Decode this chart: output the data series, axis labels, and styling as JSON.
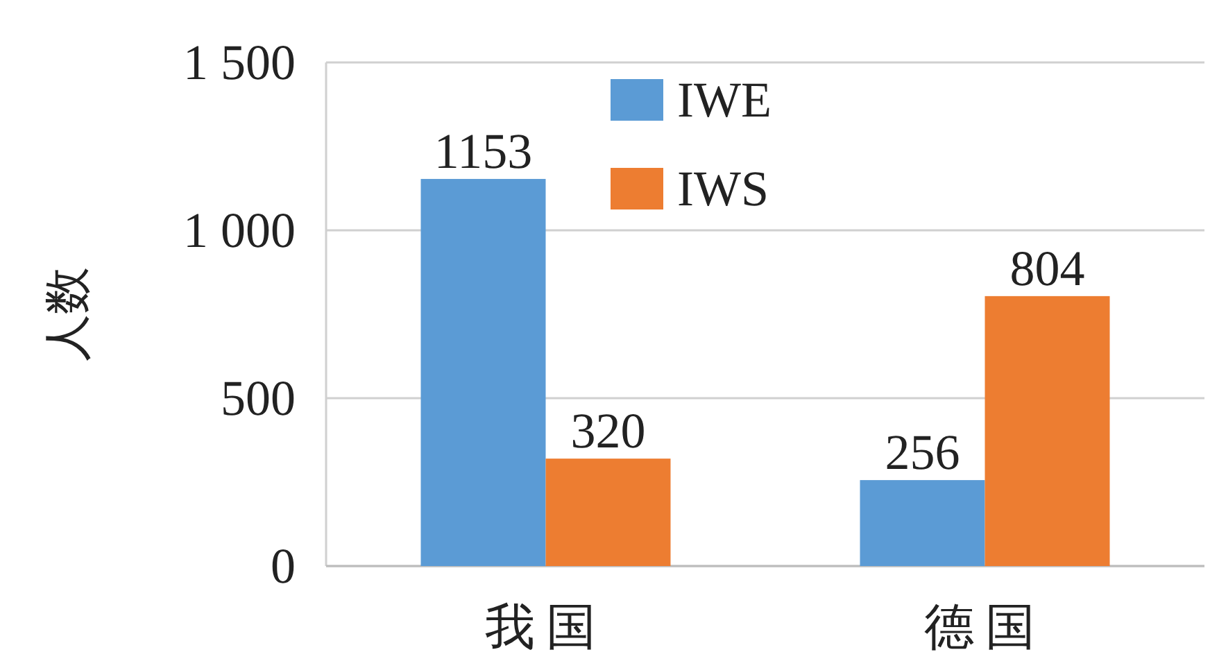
{
  "chart_data": {
    "type": "bar",
    "ylabel": "人数",
    "categories": [
      "我国",
      "德国"
    ],
    "series": [
      {
        "name": "IWE",
        "color": "#5b9bd5",
        "values": [
          1153,
          256
        ]
      },
      {
        "name": "IWS",
        "color": "#ed7d31",
        "values": [
          320,
          804
        ]
      }
    ],
    "ylim": [
      0,
      1500
    ],
    "yticks": [
      0,
      500,
      {
        "value": 1000,
        "label": "1 000"
      },
      {
        "value": 1500,
        "label": "1 500"
      }
    ],
    "grid": "y",
    "legend": "top",
    "data_labels": true
  }
}
